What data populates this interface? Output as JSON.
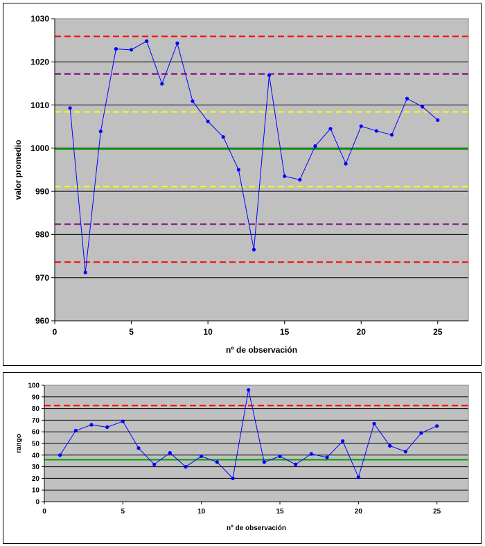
{
  "chart_data": [
    {
      "type": "line",
      "xlabel": "nº de observación",
      "ylabel": "valor promedio",
      "xlim": [
        0,
        27
      ],
      "ylim": [
        960,
        1030
      ],
      "x_ticks": [
        0,
        5,
        10,
        15,
        20,
        25
      ],
      "y_ticks": [
        960,
        970,
        980,
        990,
        1000,
        1010,
        1020,
        1030
      ],
      "grid": true,
      "legend": "none",
      "colors": {
        "plot_bg": "#c0c0c0",
        "series": "#0000ff"
      },
      "series": [
        {
          "x": [
            1,
            2,
            3,
            4,
            5,
            6,
            7,
            8,
            9,
            10,
            11,
            12,
            13,
            14,
            15,
            16,
            17,
            18,
            19,
            20,
            21,
            22,
            23,
            24,
            25
          ],
          "values": [
            1009.3,
            971.2,
            1003.9,
            1023.0,
            1022.8,
            1024.8,
            1014.9,
            1024.3,
            1010.9,
            1006.2,
            1002.6,
            995.0,
            976.5,
            1016.9,
            993.5,
            992.7,
            1000.5,
            1004.5,
            996.4,
            1005.1,
            1004.0,
            1003.1,
            1011.5,
            1009.6,
            1006.5
          ]
        }
      ],
      "reference_lines": [
        {
          "value": 1025.9,
          "color": "#ff0000",
          "style": "dashed"
        },
        {
          "value": 1017.2,
          "color": "#800080",
          "style": "dashed"
        },
        {
          "value": 1008.4,
          "color": "#ffff00",
          "style": "dashed"
        },
        {
          "value": 999.8,
          "color": "#00a000",
          "style": "solid"
        },
        {
          "value": 991.1,
          "color": "#ffff00",
          "style": "dashed"
        },
        {
          "value": 982.4,
          "color": "#800080",
          "style": "dashed"
        },
        {
          "value": 973.6,
          "color": "#ff0000",
          "style": "dashed"
        }
      ]
    },
    {
      "type": "line",
      "xlabel": "nº de observación",
      "ylabel": "rango",
      "xlim": [
        0,
        27
      ],
      "ylim": [
        0,
        100
      ],
      "x_ticks": [
        0,
        5,
        10,
        15,
        20,
        25
      ],
      "y_ticks": [
        0,
        10,
        20,
        30,
        40,
        50,
        60,
        70,
        80,
        90,
        100
      ],
      "grid": true,
      "legend": "none",
      "colors": {
        "plot_bg": "#c0c0c0",
        "series": "#0000ff"
      },
      "series": [
        {
          "x": [
            1,
            2,
            3,
            4,
            5,
            6,
            7,
            8,
            9,
            10,
            11,
            12,
            13,
            14,
            15,
            16,
            17,
            18,
            19,
            20,
            21,
            22,
            23,
            24,
            25
          ],
          "values": [
            40,
            61,
            66,
            64,
            69,
            46,
            32,
            42,
            30,
            39,
            34,
            20,
            96,
            34,
            39,
            32,
            41,
            38,
            52,
            21,
            67,
            48,
            43,
            59,
            65
          ]
        }
      ],
      "reference_lines": [
        {
          "value": 82.5,
          "color": "#ff0000",
          "style": "dashed"
        },
        {
          "value": 36,
          "color": "#00a000",
          "style": "solid"
        }
      ]
    }
  ]
}
